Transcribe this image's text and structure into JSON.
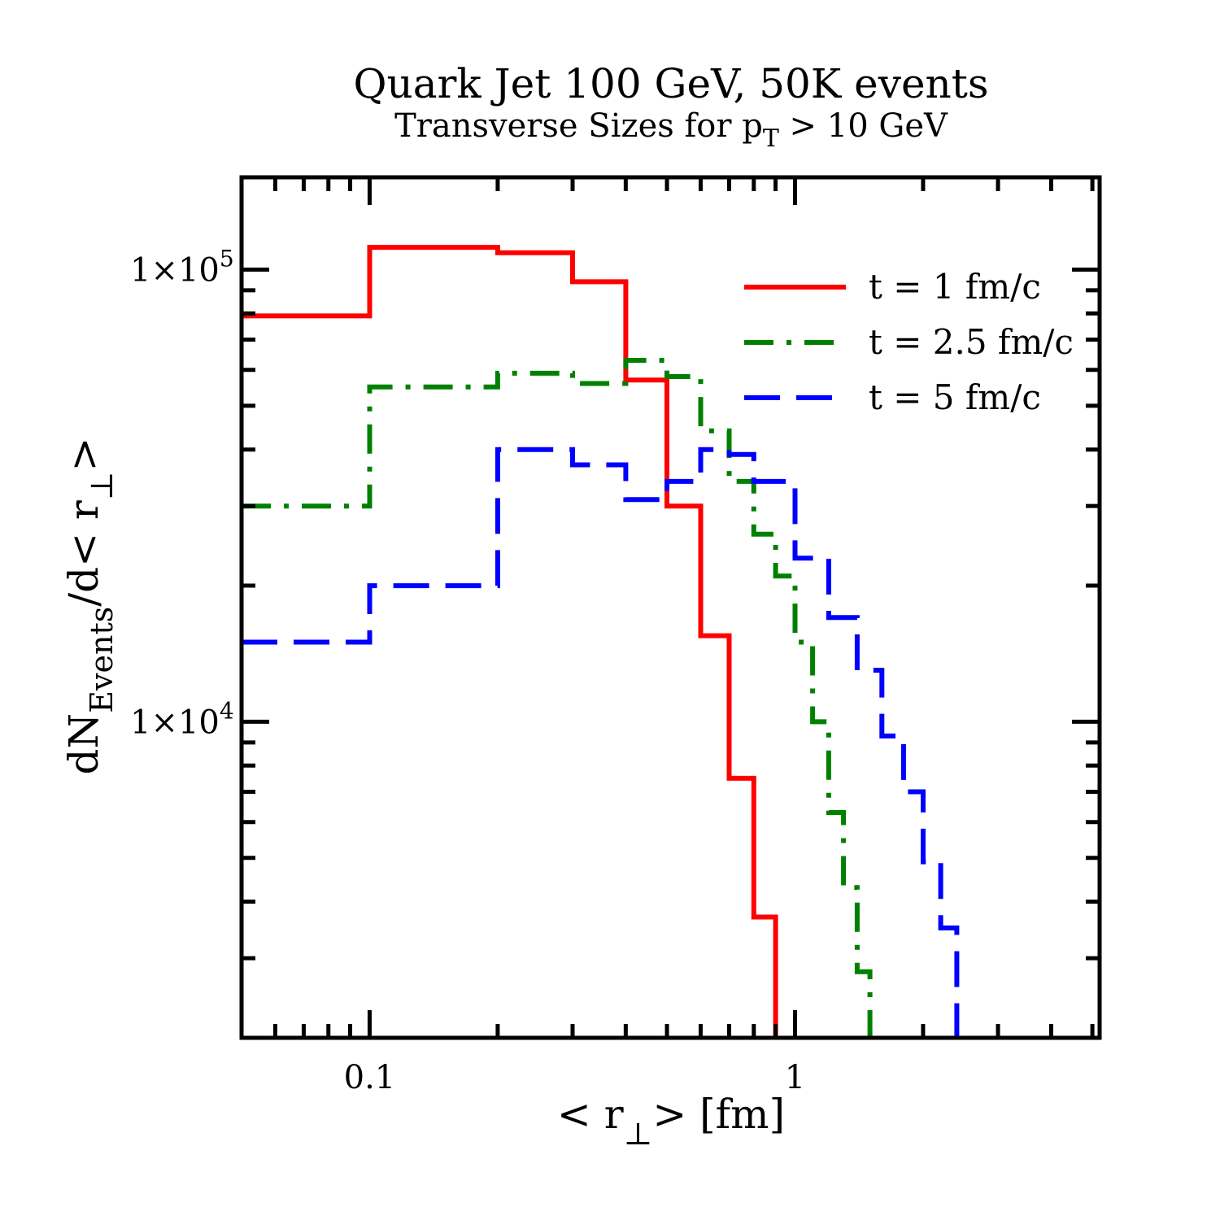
{
  "chart_data": {
    "type": "step",
    "title": "Quark Jet 100 GeV, 50K events",
    "subtitle": {
      "prefix": "Transverse Sizes for p",
      "sub": "T",
      "suffix": " > 10 GeV"
    },
    "xlabel": {
      "prefix": "< r",
      "sub": "⊥",
      "suffix": "> [fm]"
    },
    "ylabel": {
      "prefix": "dN",
      "sub": "Events",
      "middle": "/d< r",
      "sub2": "⊥",
      "suffix": ">"
    },
    "xscale": "log",
    "yscale": "log",
    "xlim": [
      0.05,
      5.2
    ],
    "ylim": [
      2000,
      160000
    ],
    "xticks": [
      {
        "value": 0.1,
        "label": "0.1"
      },
      {
        "value": 1,
        "label": "1"
      }
    ],
    "yticks": [
      {
        "value": 10000,
        "mantissa": "1×10",
        "exponent": "4"
      },
      {
        "value": 100000,
        "mantissa": "1×10",
        "exponent": "5"
      }
    ],
    "legend_position": "top-right",
    "series": [
      {
        "name": "t = 1 fm/c",
        "color": "#ff0000",
        "style": "solid",
        "edges": [
          0.05,
          0.1,
          0.2,
          0.3,
          0.4,
          0.5,
          0.6,
          0.7,
          0.8,
          0.9
        ],
        "values": [
          79000,
          112000,
          109000,
          94000,
          57000,
          30000,
          15500,
          7500,
          3700,
          2200
        ]
      },
      {
        "name": "t = 2.5 fm/c",
        "color": "#008000",
        "style": "dashdot",
        "edges": [
          0.05,
          0.1,
          0.2,
          0.3,
          0.4,
          0.5,
          0.6,
          0.7,
          0.8,
          0.9,
          1.0,
          1.1,
          1.2,
          1.3,
          1.4,
          1.5
        ],
        "values": [
          30000,
          55000,
          59000,
          56000,
          63000,
          58000,
          44000,
          34000,
          26000,
          21000,
          15000,
          10000,
          6300,
          4300,
          2800,
          2000
        ]
      },
      {
        "name": "t = 5 fm/c",
        "color": "#0000ff",
        "style": "dashed",
        "edges": [
          0.05,
          0.1,
          0.2,
          0.3,
          0.4,
          0.5,
          0.6,
          0.7,
          0.8,
          1.0,
          1.2,
          1.4,
          1.6,
          1.8,
          2.0,
          2.2,
          2.4,
          2.6
        ],
        "values": [
          15000,
          20000,
          40000,
          37000,
          31000,
          34000,
          40000,
          39000,
          34000,
          23000,
          17000,
          13000,
          9300,
          7000,
          4900,
          3500,
          2000,
          2000
        ]
      }
    ]
  }
}
